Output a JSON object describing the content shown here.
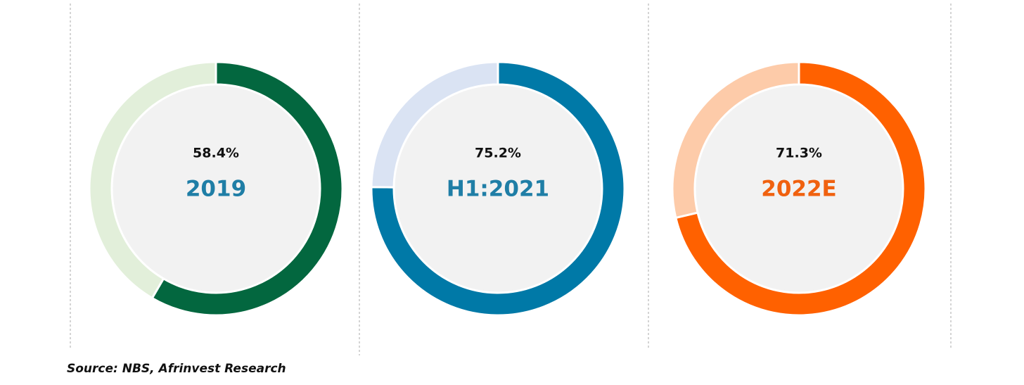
{
  "chart_data": [
    {
      "type": "donut",
      "title": "2019",
      "title_color": "#1f7ea6",
      "values": [
        58.4,
        41.6
      ],
      "value_labels": [
        "58.4%",
        null
      ],
      "colors": [
        "#03673f",
        "#e2efda"
      ]
    },
    {
      "type": "donut",
      "title": "H1:2021",
      "title_color": "#1f7ea6",
      "values": [
        75.2,
        24.8
      ],
      "value_labels": [
        "75.2%",
        null
      ],
      "colors": [
        "#0079a7",
        "#dae3f3"
      ]
    },
    {
      "type": "donut",
      "title": "2022E",
      "title_color": "#f0610f",
      "values": [
        71.3,
        28.7
      ],
      "value_labels": [
        "71.3%",
        null
      ],
      "colors": [
        "#ff6100",
        "#fdcba9"
      ]
    }
  ],
  "source": "Source: NBS, Afrinvest Research"
}
